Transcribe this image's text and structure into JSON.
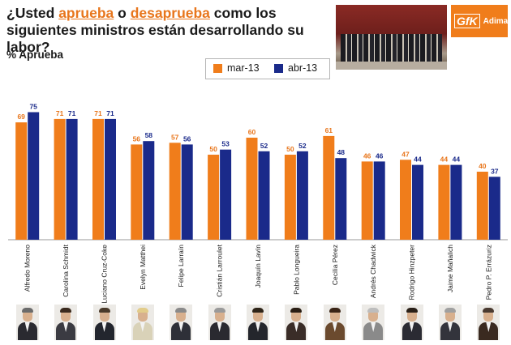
{
  "header": {
    "title_pre": "¿Usted ",
    "title_aprueba": "aprueba",
    "title_mid": " o ",
    "title_desaprueba": "desaprueba",
    "title_post": " como los siguientes ministros están desarrollando su labor?",
    "subtitle": "% Aprueba",
    "brand_mark": "GfK",
    "brand_name": "Adimark"
  },
  "colors": {
    "series1": "#f07d1b",
    "series2": "#1a2a8a",
    "accent": "#e8761c"
  },
  "chart_data": {
    "type": "bar",
    "title": "% Aprueba",
    "categories": [
      "Alfredo Moreno",
      "Carolina Schmidt",
      "Luciano Cruz-Coke",
      "Evelyn Matthei",
      "Felipe Larraín",
      "Cristián Larroulet",
      "Joaquín Lavín",
      "Pablo Longueira",
      "Cecilia Pérez",
      "Andrés Chadwick",
      "Rodrigo Hinzpeter",
      "Jaime Mañalich",
      "Pedro P. Errázuriz"
    ],
    "series": [
      {
        "name": "mar-13",
        "values": [
          69,
          71,
          71,
          56,
          57,
          50,
          60,
          50,
          61,
          46,
          47,
          44,
          40
        ]
      },
      {
        "name": "abr-13",
        "values": [
          75,
          71,
          71,
          58,
          56,
          53,
          52,
          52,
          48,
          46,
          44,
          44,
          37
        ]
      }
    ],
    "ylim": [
      0,
      100
    ],
    "xlabel": "",
    "ylabel": "",
    "grid": false,
    "legend": "top-center"
  }
}
